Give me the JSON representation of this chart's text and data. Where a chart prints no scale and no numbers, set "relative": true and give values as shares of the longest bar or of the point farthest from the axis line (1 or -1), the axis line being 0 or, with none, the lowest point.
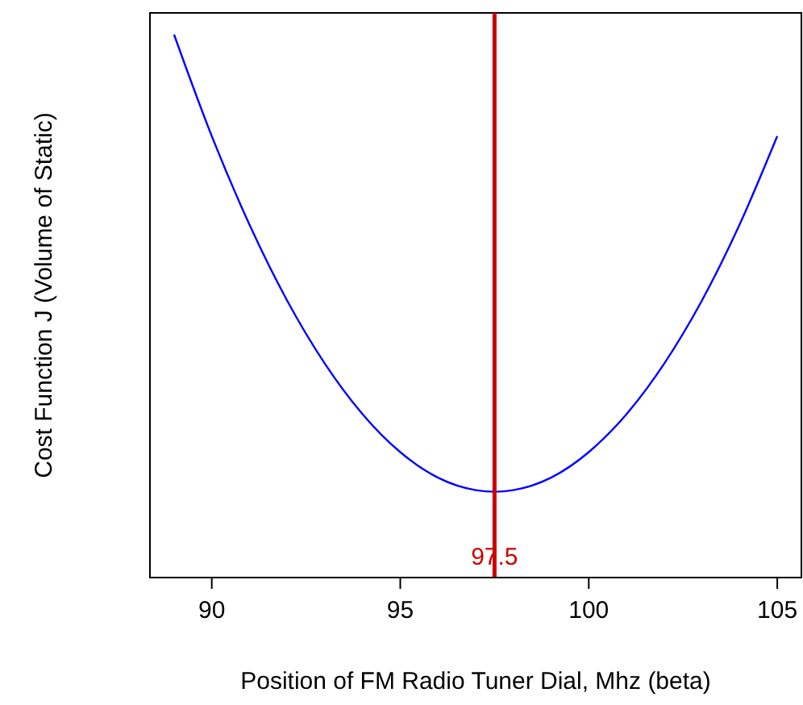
{
  "chart_data": {
    "type": "line",
    "relative": true,
    "xlabel": "Position of FM Radio Tuner Dial, Mhz (beta)",
    "ylabel": "Cost Function J (Volume of Static)",
    "xlim": [
      88.36,
      105.64
    ],
    "xticks": [
      90,
      95,
      100,
      105
    ],
    "series": [
      {
        "color": "#0000ff",
        "x": [
          89,
          90,
          91,
          92,
          93,
          94,
          95,
          96,
          97,
          97.5,
          98,
          99,
          100,
          101,
          102,
          103,
          104,
          105
        ],
        "values": [
          1.0,
          0.813,
          0.65,
          0.51,
          0.394,
          0.301,
          0.231,
          0.184,
          0.161,
          0.158,
          0.161,
          0.184,
          0.231,
          0.301,
          0.394,
          0.51,
          0.65,
          0.813
        ]
      }
    ],
    "ref_lines": [
      {
        "axis": "x",
        "value": 97.5,
        "label": "97.5",
        "color": "#cc0000"
      }
    ]
  }
}
